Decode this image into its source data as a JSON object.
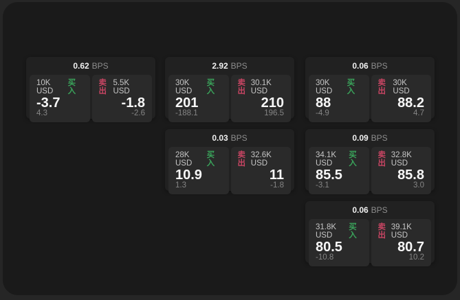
{
  "labels": {
    "bps_suffix": "BPS",
    "buy": "买入",
    "sell": "卖出"
  },
  "colors": {
    "buy_green": "#3aa45b",
    "sell_red": "#c74563",
    "card_bg": "#212121",
    "panel_bg": "#2a2a2a",
    "window_bg": "#1a1a1a"
  },
  "cards": [
    {
      "bps": "0.62",
      "col": 1,
      "row": 1,
      "buy": {
        "amount": "10K USD",
        "value": "-3.7",
        "sub": "4.3"
      },
      "sell": {
        "amount": "5.5K USD",
        "value": "-1.8",
        "sub": "-2.6"
      }
    },
    {
      "bps": "2.92",
      "col": 2,
      "row": 1,
      "buy": {
        "amount": "30K USD",
        "value": "201",
        "sub": "-188.1"
      },
      "sell": {
        "amount": "30.1K USD",
        "value": "210",
        "sub": "196.5"
      }
    },
    {
      "bps": "0.03",
      "col": 2,
      "row": 2,
      "buy": {
        "amount": "28K USD",
        "value": "10.9",
        "sub": "1.3"
      },
      "sell": {
        "amount": "32.6K USD",
        "value": "11",
        "sub": "-1.8"
      }
    },
    {
      "bps": "0.06",
      "col": 3,
      "row": 1,
      "buy": {
        "amount": "30K USD",
        "value": "88",
        "sub": "-4.9"
      },
      "sell": {
        "amount": "30K USD",
        "value": "88.2",
        "sub": "4.7"
      }
    },
    {
      "bps": "0.09",
      "col": 3,
      "row": 2,
      "buy": {
        "amount": "34.1K USD",
        "value": "85.5",
        "sub": "-3.1"
      },
      "sell": {
        "amount": "32.8K USD",
        "value": "85.8",
        "sub": "3.0"
      }
    },
    {
      "bps": "0.06",
      "col": 3,
      "row": 3,
      "buy": {
        "amount": "31.8K USD",
        "value": "80.5",
        "sub": "-10.8"
      },
      "sell": {
        "amount": "39.1K USD",
        "value": "80.7",
        "sub": "10.2"
      }
    }
  ]
}
